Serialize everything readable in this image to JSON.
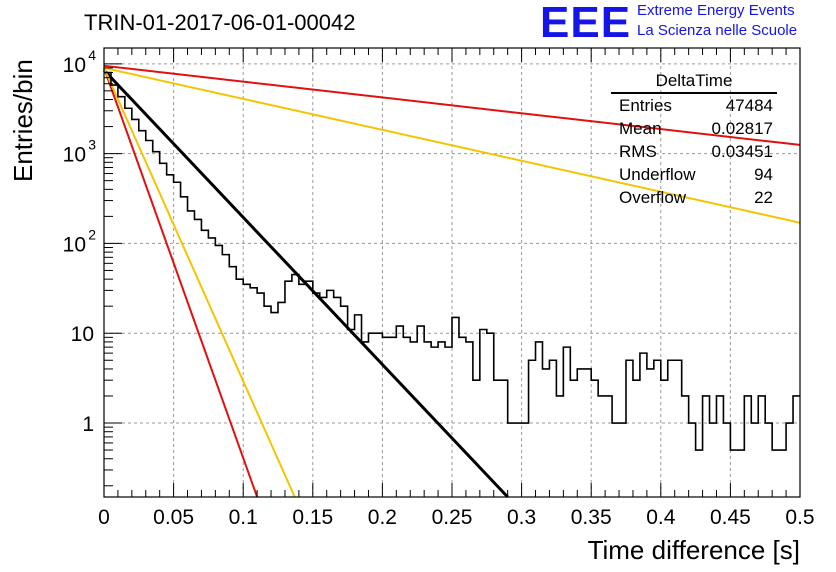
{
  "chart_data": {
    "type": "histogram",
    "title": "TRIN-01-2017-06-01-00042",
    "xlabel": "Time difference [s]",
    "ylabel": "Entries/bin",
    "xlim": [
      0,
      0.5
    ],
    "ylim": [
      0.15,
      15000
    ],
    "yscale": "log",
    "grid": true,
    "x_ticks": [
      "0",
      "0.05",
      "0.1",
      "0.15",
      "0.2",
      "0.25",
      "0.3",
      "0.35",
      "0.4",
      "0.45",
      "0.5"
    ],
    "y_ticks": [
      {
        "base": "10",
        "exp": "4"
      },
      {
        "base": "10",
        "exp": "3"
      },
      {
        "base": "10",
        "exp": "2"
      },
      {
        "base": "10",
        "exp": ""
      },
      {
        "base": "1",
        "exp": ""
      }
    ],
    "histogram": {
      "bin_width": 0.005,
      "x_start": 0.0,
      "counts": [
        8000,
        5800,
        4300,
        3200,
        2400,
        1800,
        1400,
        1050,
        780,
        580,
        480,
        330,
        230,
        185,
        140,
        115,
        95,
        75,
        55,
        40,
        35,
        32,
        28,
        20,
        17,
        22,
        38,
        45,
        35,
        38,
        28,
        25,
        30,
        25,
        20,
        11,
        16,
        8,
        10,
        10,
        9,
        9,
        12,
        9,
        8,
        12,
        8,
        7,
        8,
        7,
        15,
        9,
        8,
        3,
        11,
        10,
        3,
        3,
        1,
        1,
        1,
        5,
        8,
        4,
        5,
        2,
        7,
        3,
        4,
        4,
        3,
        2,
        2,
        1,
        1,
        5,
        3,
        6,
        4,
        5,
        3,
        5,
        5,
        2,
        1,
        0.5,
        2,
        1,
        2,
        1,
        0.5,
        0.5,
        2,
        1,
        2,
        1,
        0.5,
        0.5,
        1,
        2
      ]
    },
    "fit_lines": [
      {
        "color": "#000000",
        "x": [
          0,
          0.29
        ],
        "y": [
          8500,
          0.15
        ]
      },
      {
        "color": "#e01010",
        "x": [
          0,
          0.5
        ],
        "y": [
          9500,
          1250
        ]
      },
      {
        "color": "#f5c400",
        "x": [
          0,
          0.5
        ],
        "y": [
          9000,
          170
        ]
      },
      {
        "color": "#e01010",
        "x": [
          0,
          0.11
        ],
        "y": [
          9000,
          0.15
        ]
      },
      {
        "color": "#f5c400",
        "x": [
          0,
          0.137
        ],
        "y": [
          9000,
          0.15
        ]
      }
    ],
    "stats_box": {
      "title": "DeltaTime",
      "rows": [
        {
          "label": "Entries",
          "value": "47484"
        },
        {
          "label": "Mean",
          "value": "0.02817"
        },
        {
          "label": "RMS",
          "value": "0.03451"
        },
        {
          "label": "Underflow",
          "value": "94"
        },
        {
          "label": "Overflow",
          "value": "22"
        }
      ]
    },
    "logo": {
      "mark": "EEE",
      "line1": "Extreme Energy Events",
      "line2": "La Scienza nelle Scuole",
      "color": "#1515e6"
    }
  }
}
